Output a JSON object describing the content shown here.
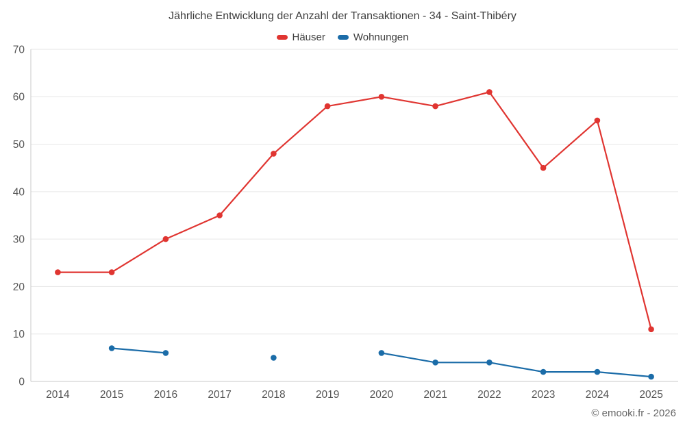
{
  "title": "Jährliche Entwicklung der Anzahl der Transaktionen - 34 - Saint-Thibéry",
  "footer": "© emooki.fr - 2026",
  "colors": {
    "haeuser": "#e03531",
    "wohnungen": "#1b6ca8",
    "grid": "#e6e6e6",
    "axis": "#c9c9c9",
    "tick_text": "#555555",
    "title_text": "#3d3d3d",
    "footer_text": "#666666",
    "background": "#ffffff"
  },
  "chart_data": {
    "type": "line",
    "title": "Jährliche Entwicklung der Anzahl der Transaktionen - 34 - Saint-Thibéry",
    "categories": [
      "2014",
      "2015",
      "2016",
      "2017",
      "2018",
      "2019",
      "2020",
      "2021",
      "2022",
      "2023",
      "2024",
      "2025"
    ],
    "series": [
      {
        "name": "Häuser",
        "color": "#e03531",
        "values": [
          23,
          23,
          30,
          35,
          48,
          58,
          60,
          58,
          61,
          45,
          55,
          11
        ]
      },
      {
        "name": "Wohnungen",
        "color": "#1b6ca8",
        "values": [
          null,
          7,
          6,
          null,
          5,
          null,
          6,
          4,
          4,
          2,
          2,
          1
        ]
      }
    ],
    "xlabel": "",
    "ylabel": "",
    "ylim": [
      0,
      70
    ],
    "yticks": [
      0,
      10,
      20,
      30,
      40,
      50,
      60,
      70
    ],
    "grid": "horizontal",
    "legend_position": "top",
    "markers": "circle"
  }
}
